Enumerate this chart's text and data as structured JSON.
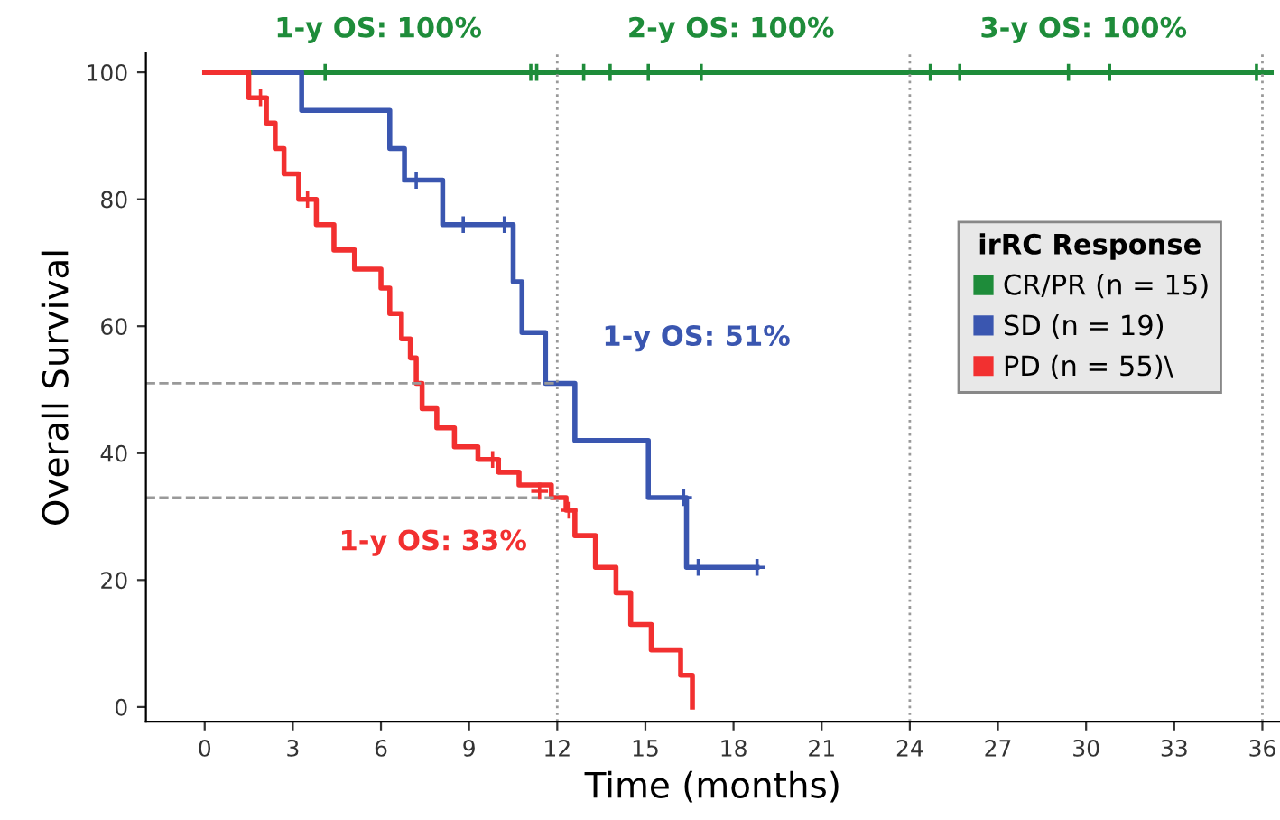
{
  "chart_data": {
    "type": "step",
    "xlabel": "Time (months)",
    "ylabel": "Overall Survival",
    "legend_title": "irRC Response",
    "xlim": [
      -2,
      36.6
    ],
    "ylim": [
      -2.3,
      103
    ],
    "xticks": [
      0,
      3,
      6,
      9,
      12,
      15,
      18,
      21,
      24,
      27,
      30,
      33,
      36
    ],
    "yticks": [
      0,
      20,
      40,
      60,
      80,
      100
    ],
    "grid": false,
    "legend": "right",
    "line_style": "solid",
    "series": [
      {
        "name": "CR/PR (n = 15)",
        "color": "#1e8c3a",
        "x": [
          0,
          36.3
        ],
        "values": [
          100,
          100
        ]
      },
      {
        "name": "SD (n = 19)",
        "color": "#3a56b0",
        "x": [
          1.7,
          3.3,
          6.3,
          6.8,
          8.1,
          10.5,
          10.8,
          11.6,
          12.6,
          15.1,
          16.4,
          18.8
        ],
        "values": [
          100,
          94,
          88,
          83,
          76,
          67,
          59,
          51,
          42,
          33,
          22,
          22
        ]
      },
      {
        "name": "PD (n = 55)\\",
        "color": "#f23030",
        "x": [
          0,
          1.5,
          2.1,
          2.4,
          2.7,
          3.2,
          3.8,
          4.4,
          5.1,
          6.0,
          6.3,
          6.7,
          7.0,
          7.2,
          7.4,
          7.9,
          8.5,
          9.3,
          10.0,
          10.7,
          11.8,
          12.3,
          12.6,
          13.3,
          14.0,
          14.5,
          15.2,
          16.2,
          16.6
        ],
        "values": [
          100,
          96,
          92,
          88,
          84,
          80,
          76,
          72,
          69,
          66,
          62,
          58,
          55,
          51,
          47,
          44,
          41,
          39,
          37,
          35,
          33,
          31,
          27,
          22,
          18,
          13,
          9,
          5,
          0
        ]
      },
      {
        "type": "scatter",
        "marker": "cross",
        "color": "#1e8c3a",
        "x": [
          4.1,
          11.1,
          11.3,
          12.9,
          13.8,
          15.1,
          16.9,
          24.7,
          25.7,
          29.4,
          30.8,
          35.8
        ],
        "values": [
          100,
          100,
          100,
          100,
          100,
          100,
          100,
          100,
          100,
          100,
          100,
          100
        ]
      },
      {
        "type": "scatter",
        "marker": "cross",
        "color": "#3a56b0",
        "x": [
          7.2,
          8.8,
          10.2,
          16.3,
          16.8,
          18.8
        ],
        "values": [
          83,
          76,
          76,
          33,
          22,
          22
        ]
      },
      {
        "type": "scatter",
        "marker": "cross",
        "color": "#f23030",
        "x": [
          1.9,
          3.5,
          9.8,
          11.4,
          12.4
        ],
        "values": [
          96,
          80,
          39,
          34,
          31
        ]
      }
    ],
    "ref_lines": [
      {
        "axis": "x",
        "value": 12,
        "line_style": "dotted",
        "color": "#999999"
      },
      {
        "axis": "x",
        "value": 24,
        "line_style": "dotted",
        "color": "#999999"
      },
      {
        "axis": "x",
        "value": 36,
        "line_style": "dotted",
        "color": "#999999"
      },
      {
        "axis": "y",
        "value": 51,
        "line_style": "dashed",
        "color": "#999999"
      },
      {
        "axis": "y",
        "value": 33,
        "line_style": "dashed",
        "color": "#999999"
      }
    ],
    "annotations": [
      {
        "text": "1-y OS: 100%",
        "x": 12,
        "y": 100
      },
      {
        "text": "2-y OS: 100%",
        "x": 24,
        "y": 100
      },
      {
        "text": "3-y OS: 100%",
        "x": 36,
        "y": 100
      },
      {
        "text": "1-y OS: 51%",
        "x": 12,
        "y": 51
      },
      {
        "text": "1-y OS: 33%",
        "x": 12,
        "y": 33
      }
    ]
  }
}
